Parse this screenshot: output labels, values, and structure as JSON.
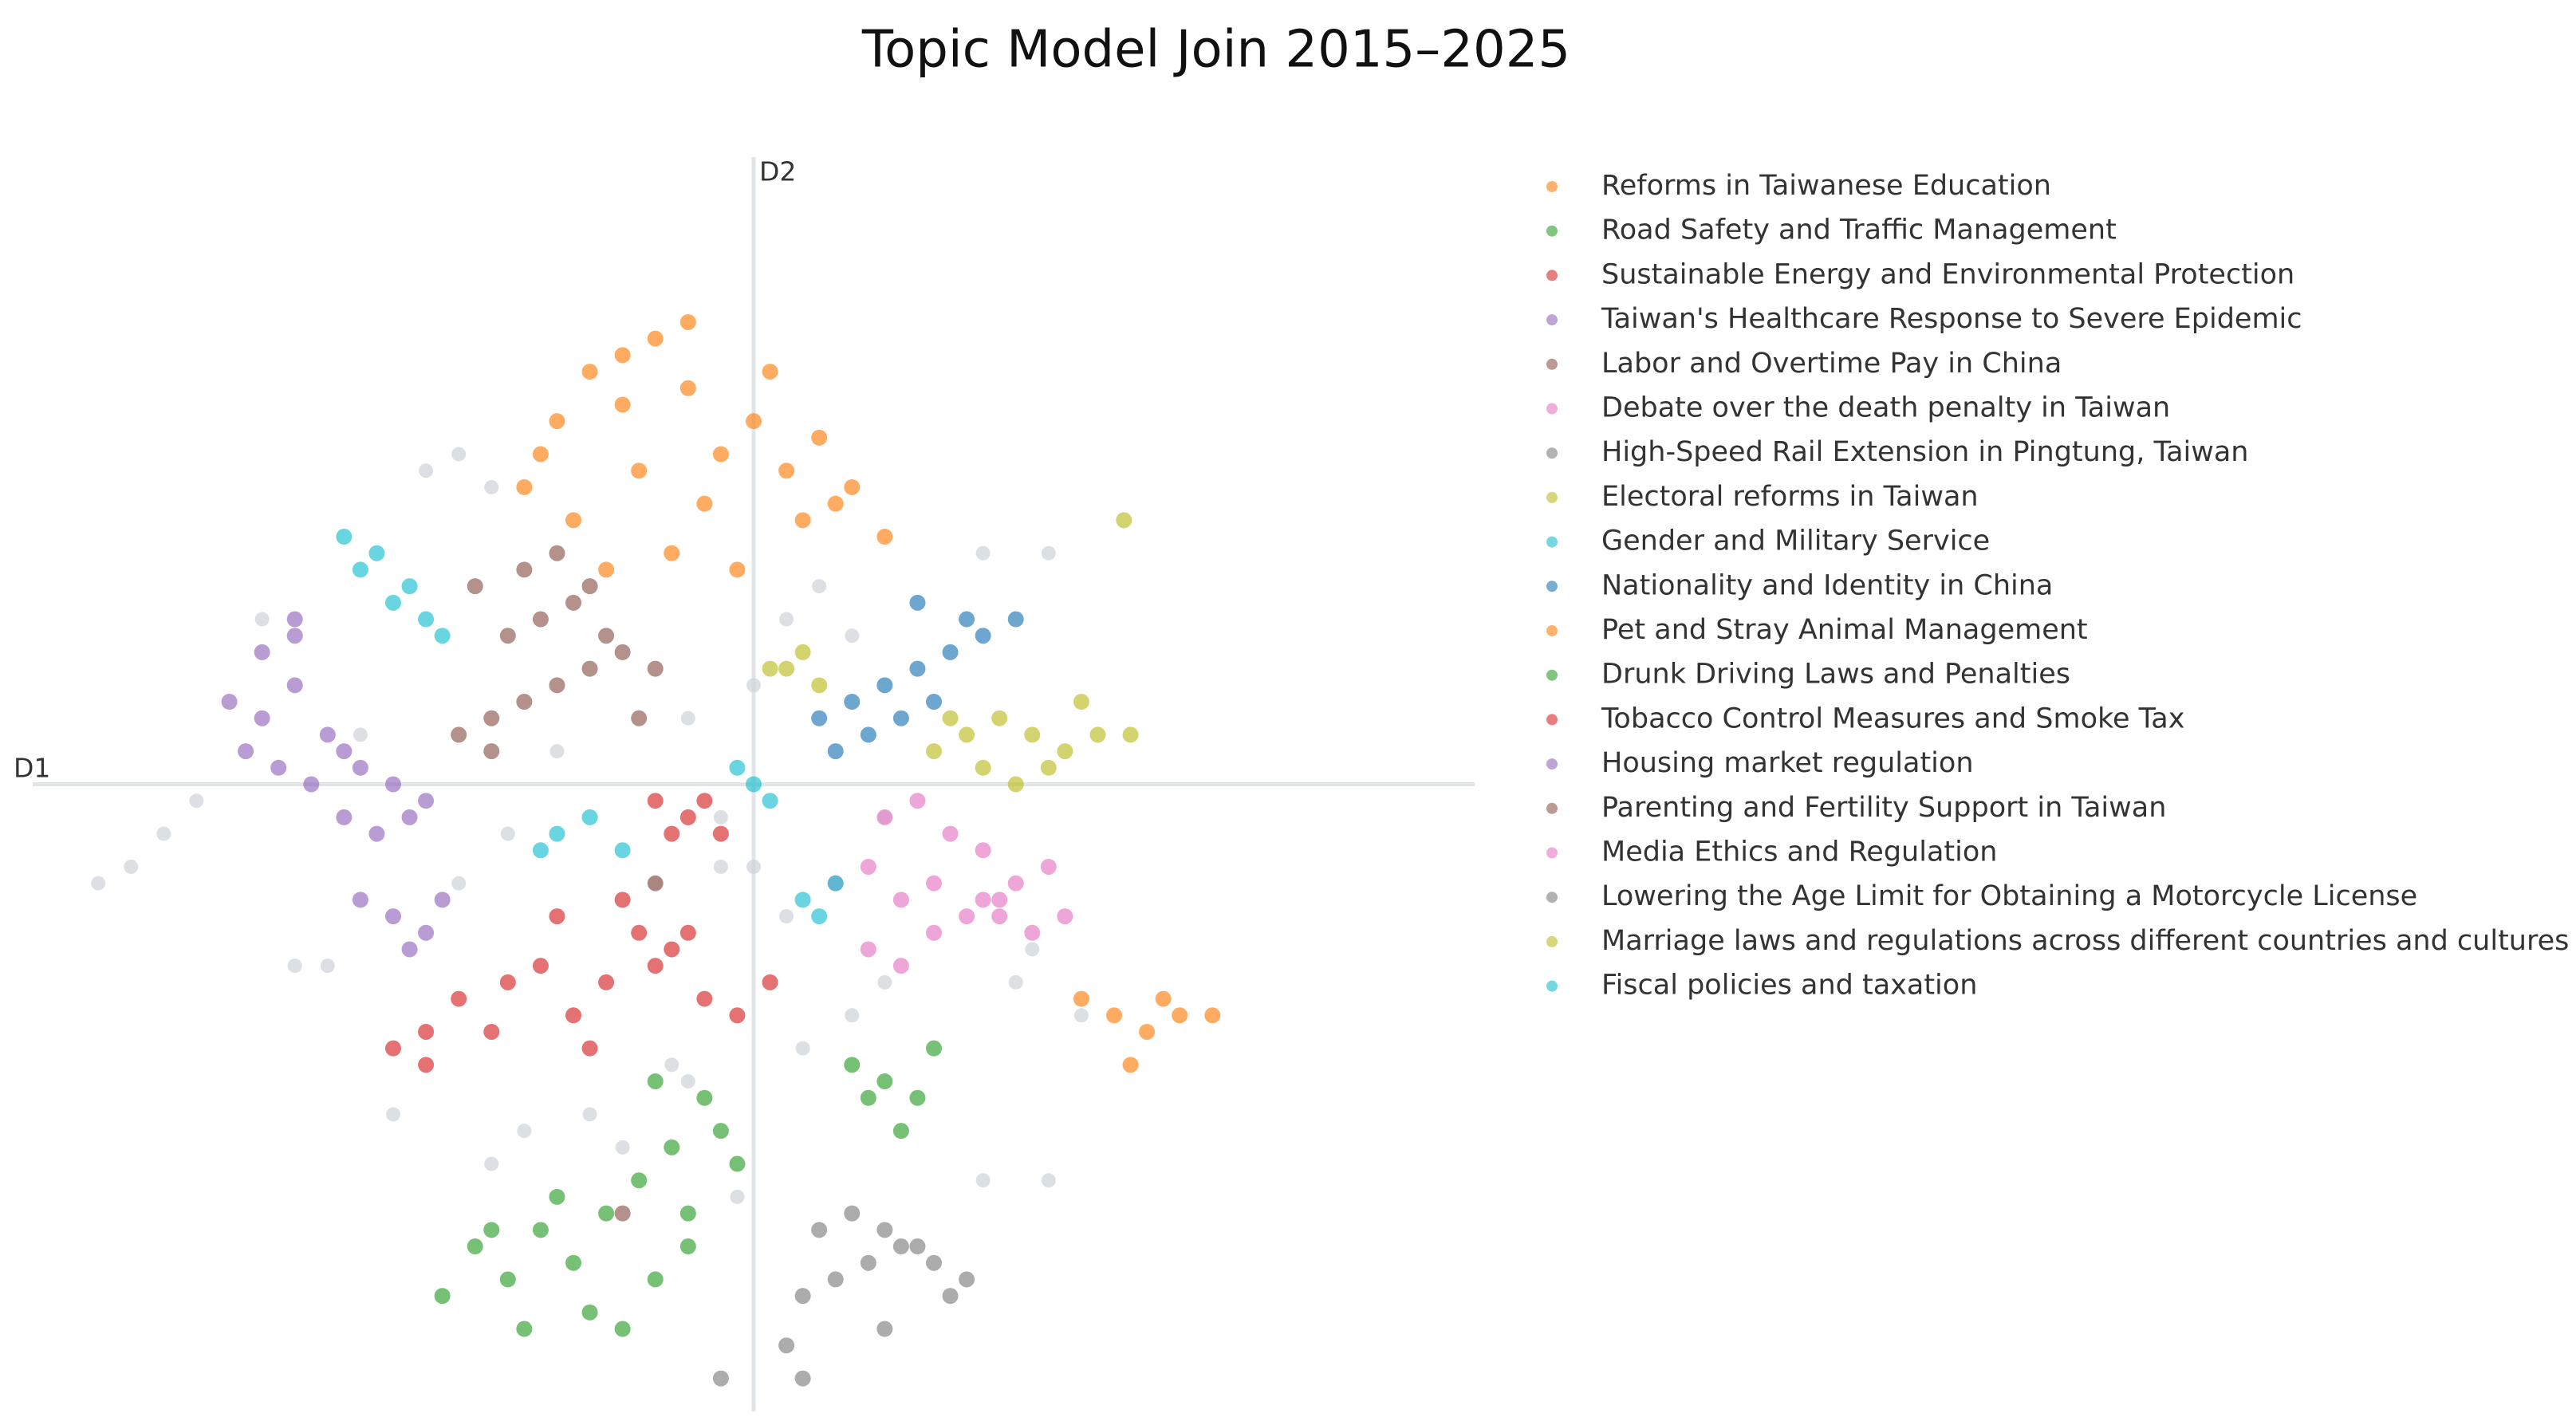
{
  "chart_data": {
    "type": "scatter",
    "title": "Topic Model Join 2015–2025",
    "x_label": "D1",
    "y_label": "D2",
    "xlim": [
      -44,
      44
    ],
    "ylim": [
      -38,
      38
    ],
    "background": {
      "color": "#cdd3d8",
      "x": [
        -20,
        -18,
        -16,
        -12,
        -4,
        0,
        2,
        4,
        6,
        -2,
        -6,
        -34,
        -38,
        -36,
        -40,
        -26,
        -22,
        -10,
        -5,
        3,
        8,
        16,
        17,
        20,
        18,
        -16,
        -14,
        -8,
        -2,
        0,
        2,
        14,
        -18,
        -15,
        -4,
        -1,
        6,
        -24,
        -28,
        -30,
        8,
        14,
        18
      ],
      "y": [
        19,
        20,
        18,
        2,
        4,
        6,
        10,
        12,
        9,
        -5,
        -6,
        -1,
        -5,
        -3,
        -6,
        -11,
        -20,
        -20,
        -17,
        -16,
        -12,
        -12,
        -10,
        -14,
        -24,
        -23,
        -21,
        -22,
        -2,
        -5,
        -8,
        -24,
        -6,
        -3,
        -18,
        -25,
        -14,
        3,
        -11,
        10,
        -2,
        14,
        14
      ]
    },
    "series": [
      {
        "name": "Reforms in Taiwanese Education",
        "color": "#ff7f0e",
        "x": [
          -14,
          -12,
          -10,
          -8,
          -6,
          -4,
          -2,
          0,
          2,
          4,
          6,
          8,
          -11,
          -7,
          -3,
          1,
          5,
          -9,
          -5,
          -1,
          3,
          -13,
          -8,
          -4
        ],
        "y": [
          18,
          22,
          25,
          23,
          27,
          24,
          20,
          22,
          19,
          21,
          18,
          15,
          16,
          19,
          17,
          25,
          17,
          13,
          14,
          13,
          16,
          20,
          26,
          28
        ]
      },
      {
        "name": "Road Safety and Traffic Management",
        "color": "#2ca02c",
        "x": [
          -19,
          -17,
          -15,
          -13,
          -11,
          -9,
          -7,
          -5,
          -3,
          -2,
          -10,
          -8,
          -6,
          -4,
          -12,
          -16,
          -14,
          -6,
          -4,
          -1
        ],
        "y": [
          -31,
          -28,
          -30,
          -27,
          -29,
          -26,
          -24,
          -22,
          -19,
          -21,
          -32,
          -33,
          -30,
          -28,
          -25,
          -27,
          -33,
          -18,
          -26,
          -23
        ]
      },
      {
        "name": "Sustainable Energy and Environmental Protection",
        "color": "#d62728",
        "x": [
          -22,
          -20,
          -18,
          -15,
          -13,
          -11,
          -9,
          -7,
          -5,
          -3,
          -1,
          1,
          -12,
          -8,
          -6,
          -16,
          -10,
          -4,
          -20
        ],
        "y": [
          -16,
          -15,
          -13,
          -12,
          -11,
          -14,
          -12,
          -9,
          -10,
          -13,
          -14,
          -12,
          -8,
          -7,
          -11,
          -15,
          -16,
          -9,
          -17
        ]
      },
      {
        "name": "Taiwan's Healthcare Response to Severe Epidemic",
        "color": "#9467bd",
        "x": [
          -32,
          -30,
          -28,
          -26,
          -31,
          -29,
          -27,
          -25,
          -30,
          -28,
          -24,
          -22,
          -20,
          -25,
          -23,
          -21,
          -28
        ],
        "y": [
          5,
          4,
          6,
          3,
          2,
          1,
          0,
          2,
          8,
          9,
          1,
          0,
          -1,
          -2,
          -3,
          -2,
          10
        ]
      },
      {
        "name": "Labor and Overtime Pay in China",
        "color": "#8c564b",
        "x": [
          -18,
          -16,
          -14,
          -12,
          -10,
          -8,
          -6,
          -15,
          -13,
          -11,
          -9,
          -17,
          -14,
          -12,
          -10,
          -16,
          -7
        ],
        "y": [
          3,
          4,
          5,
          6,
          7,
          8,
          7,
          9,
          10,
          11,
          9,
          12,
          13,
          14,
          12,
          2,
          4
        ]
      },
      {
        "name": "Debate over the death penalty in Taiwan",
        "color": "#e377c2",
        "x": [
          5,
          7,
          9,
          11,
          13,
          15,
          17,
          19,
          8,
          10,
          12,
          14,
          16,
          7,
          9,
          11,
          18
        ],
        "y": [
          -6,
          -5,
          -7,
          -6,
          -8,
          -7,
          -9,
          -8,
          -2,
          -1,
          -3,
          -4,
          -6,
          -10,
          -11,
          -9,
          -5
        ]
      },
      {
        "name": "High-Speed Rail Extension in Pingtung, Taiwan",
        "color": "#7f7f7f",
        "x": [
          3,
          5,
          7,
          9,
          11,
          13,
          4,
          6,
          8,
          10,
          12,
          2,
          3
        ],
        "y": [
          -31,
          -30,
          -29,
          -28,
          -29,
          -30,
          -27,
          -26,
          -27,
          -28,
          -31,
          -34,
          -36
        ]
      },
      {
        "name": "Electoral reforms in Taiwan",
        "color": "#bcbd22",
        "x": [
          11,
          13,
          15,
          17,
          19,
          21,
          23,
          14,
          16,
          18,
          12,
          20,
          22.6
        ],
        "y": [
          2,
          3,
          4,
          3,
          2,
          3,
          3,
          1,
          0,
          1,
          4,
          5,
          16
        ]
      },
      {
        "name": "Gender and Military Service",
        "color": "#17becf",
        "x": [
          -25,
          -23,
          -21,
          -20,
          -24,
          -22,
          -19,
          -12,
          -10,
          -8,
          -13,
          -1,
          0,
          1
        ],
        "y": [
          15,
          14,
          12,
          10,
          13,
          11,
          9,
          -3,
          -2,
          -4,
          -4,
          1,
          0,
          -1
        ]
      },
      {
        "name": "Nationality and Identity in China",
        "color": "#1f77b4",
        "x": [
          4,
          6,
          8,
          10,
          12,
          14,
          16,
          7,
          9,
          11,
          13,
          5,
          10
        ],
        "y": [
          4,
          5,
          6,
          7,
          8,
          9,
          10,
          3,
          4,
          5,
          10,
          2,
          11
        ]
      },
      {
        "name": "Pet and Stray Animal Management",
        "color": "#ff7f0e",
        "x": [
          20,
          22,
          24,
          26,
          28,
          23,
          25
        ],
        "y": [
          -13,
          -14,
          -15,
          -14,
          -14,
          -17,
          -13
        ]
      },
      {
        "name": "Drunk Driving Laws and Penalties",
        "color": "#2ca02c",
        "x": [
          6,
          8,
          10,
          11,
          7,
          9
        ],
        "y": [
          -17,
          -18,
          -19,
          -16,
          -19,
          -21
        ]
      },
      {
        "name": "Tobacco Control Measures and Smoke Tax",
        "color": "#d62728",
        "x": [
          -6,
          -4,
          -3,
          -5,
          -2
        ],
        "y": [
          -1,
          -2,
          -1,
          -3,
          -3
        ]
      },
      {
        "name": "Housing market regulation",
        "color": "#9467bd",
        "x": [
          -24,
          -22,
          -20,
          -19,
          -21
        ],
        "y": [
          -7,
          -8,
          -9,
          -7,
          -10
        ]
      },
      {
        "name": "Parenting and Fertility Support in Taiwan",
        "color": "#8c564b",
        "x": [
          -8,
          -6
        ],
        "y": [
          -26,
          -6
        ]
      },
      {
        "name": "Media Ethics and Regulation",
        "color": "#e377c2",
        "x": [
          14,
          15
        ],
        "y": [
          -7,
          -8
        ]
      },
      {
        "name": "Lowering the Age Limit for Obtaining a Motorcycle License",
        "color": "#7f7f7f",
        "x": [
          8,
          -2
        ],
        "y": [
          -33,
          -36
        ]
      },
      {
        "name": "Marriage laws and regulations across different countries and cultures",
        "color": "#bcbd22",
        "x": [
          1,
          2,
          3,
          4
        ],
        "y": [
          7,
          7,
          8,
          6
        ]
      },
      {
        "name": "Fiscal policies and taxation",
        "color": "#17becf",
        "x": [
          3,
          4,
          5
        ],
        "y": [
          -7,
          -8,
          -6
        ]
      }
    ]
  }
}
